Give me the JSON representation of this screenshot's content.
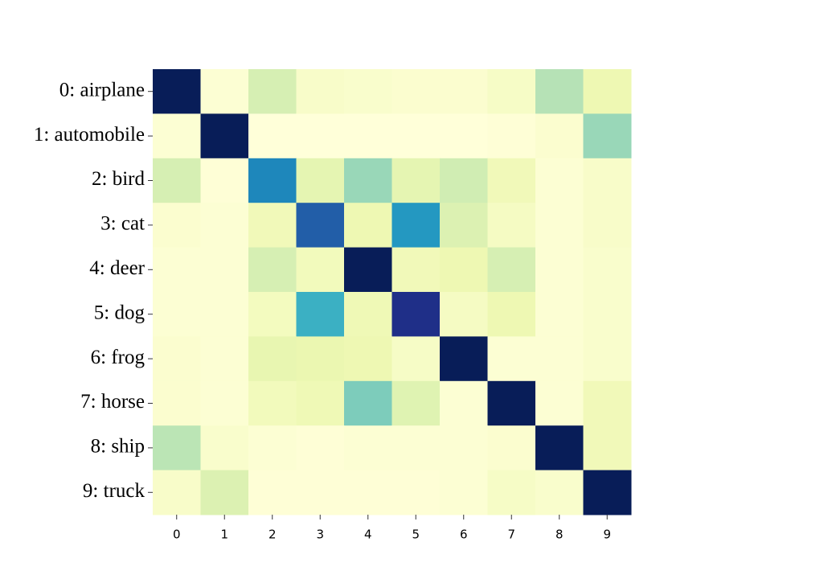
{
  "chart_data": {
    "type": "heatmap",
    "x_categories": [
      "0",
      "1",
      "2",
      "3",
      "4",
      "5",
      "6",
      "7",
      "8",
      "9"
    ],
    "y_categories": [
      "0: airplane",
      "1: automobile",
      "2: bird",
      "3: cat",
      "4: deer",
      "5: dog",
      "6: frog",
      "7: horse",
      "8: ship",
      "9: truck"
    ],
    "values": [
      [
        1.0,
        0.02,
        0.2,
        0.05,
        0.04,
        0.03,
        0.03,
        0.06,
        0.28,
        0.12
      ],
      [
        0.02,
        1.0,
        0.0,
        0.0,
        0.0,
        0.0,
        0.0,
        0.01,
        0.03,
        0.33
      ],
      [
        0.2,
        0.01,
        0.65,
        0.15,
        0.33,
        0.15,
        0.22,
        0.1,
        0.02,
        0.05
      ],
      [
        0.03,
        0.02,
        0.1,
        0.75,
        0.12,
        0.6,
        0.18,
        0.07,
        0.02,
        0.05
      ],
      [
        0.02,
        0.02,
        0.2,
        0.09,
        1.0,
        0.1,
        0.12,
        0.2,
        0.02,
        0.04
      ],
      [
        0.02,
        0.02,
        0.08,
        0.52,
        0.11,
        0.9,
        0.07,
        0.12,
        0.02,
        0.04
      ],
      [
        0.03,
        0.02,
        0.14,
        0.13,
        0.12,
        0.06,
        1.0,
        0.02,
        0.02,
        0.04
      ],
      [
        0.03,
        0.02,
        0.09,
        0.11,
        0.38,
        0.17,
        0.02,
        1.0,
        0.02,
        0.1
      ],
      [
        0.27,
        0.04,
        0.02,
        0.01,
        0.02,
        0.02,
        0.02,
        0.03,
        1.0,
        0.1
      ],
      [
        0.05,
        0.18,
        0.01,
        0.01,
        0.01,
        0.01,
        0.02,
        0.06,
        0.04,
        1.0
      ]
    ],
    "zlim": [
      0,
      1
    ],
    "color_scale": [
      "#ffffd9",
      "#edf8b1",
      "#c7e9b4",
      "#7fcdbb",
      "#41b6c4",
      "#1d91c0",
      "#225ea8",
      "#253494",
      "#081d58"
    ]
  }
}
